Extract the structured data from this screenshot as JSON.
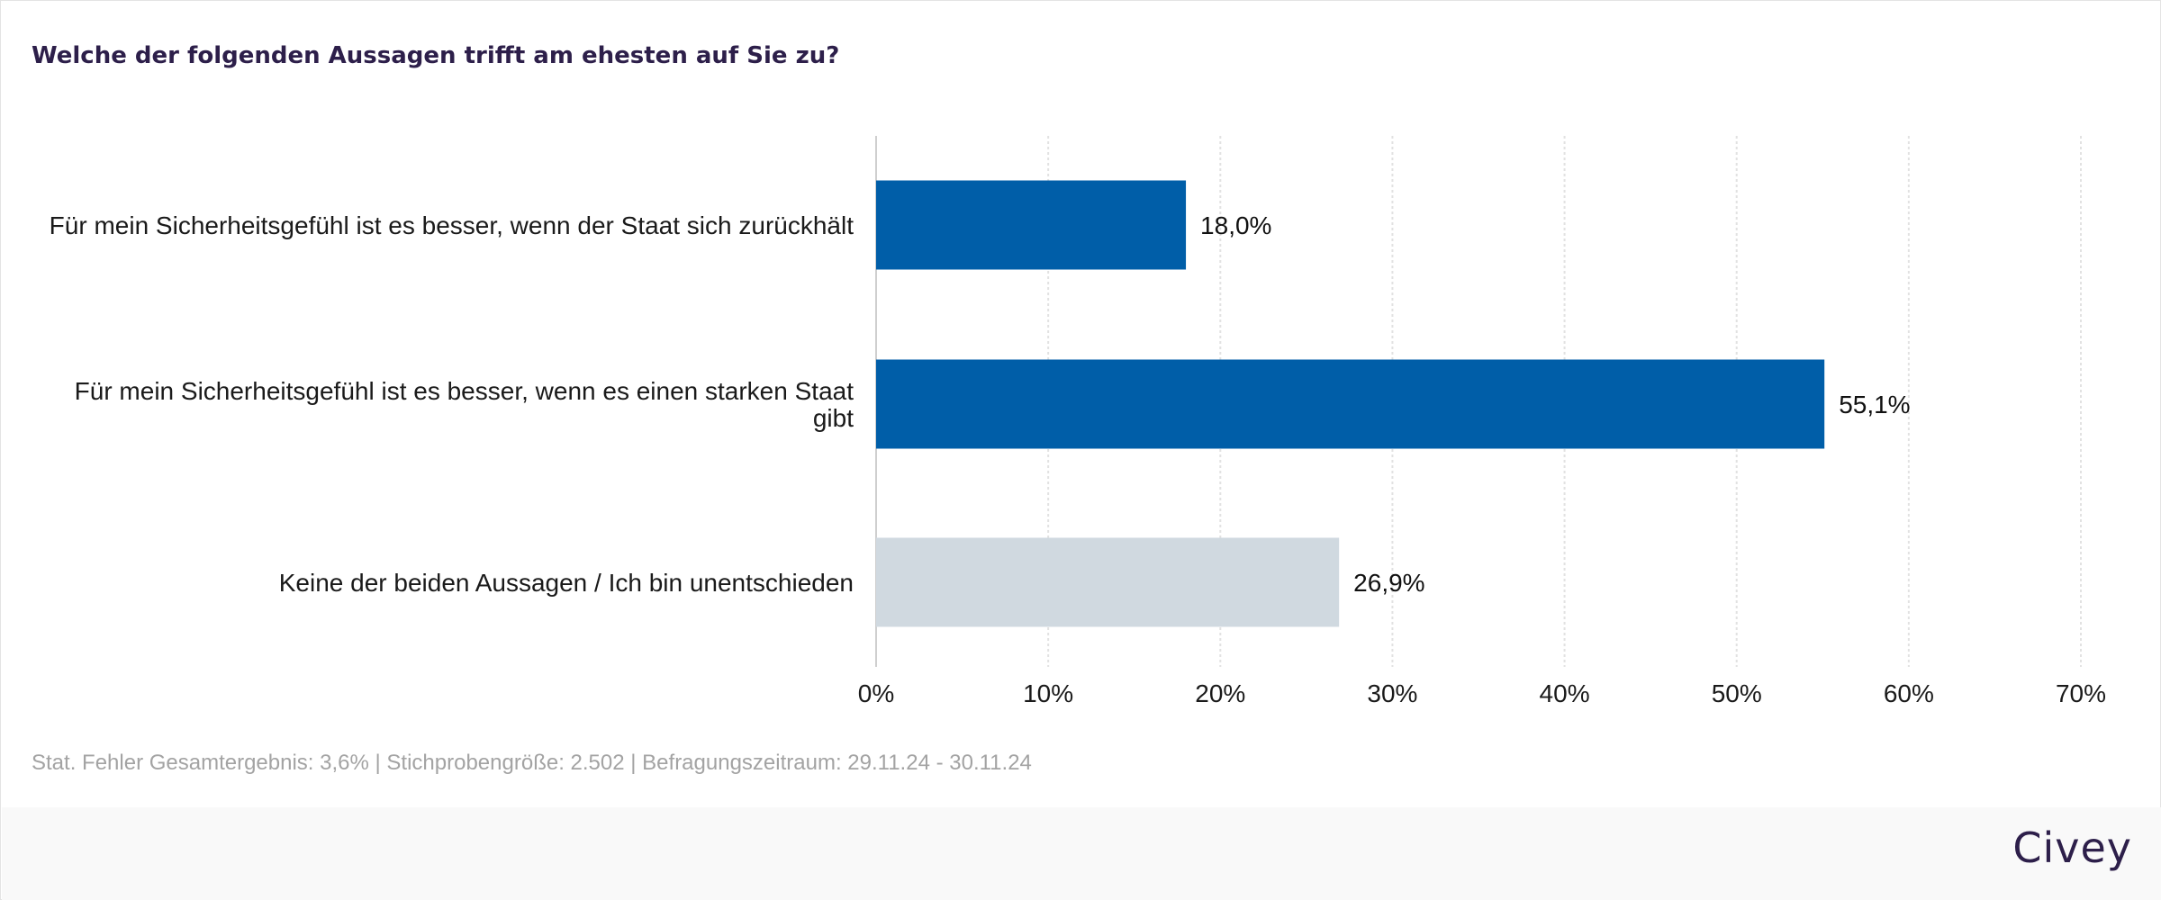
{
  "question": "Welche der folgenden Aussagen trifft am ehesten auf Sie zu?",
  "footnote": "Stat. Fehler Gesamtergebnis: 3,6% | Stichprobengröße: 2.502 | Befragungszeitraum: 29.11.24 - 30.11.24",
  "brand": "Civey",
  "colors": {
    "primary_bar": "#005ea8",
    "neutral_bar": "#d0d9e0",
    "grid": "#e2e2e2",
    "title": "#2d1f4a"
  },
  "chart_data": {
    "type": "bar",
    "orientation": "horizontal",
    "title": "Welche der folgenden Aussagen trifft am ehesten auf Sie zu?",
    "categories": [
      [
        "Für mein Sicherheitsgefühl ist es besser, wenn der Staat sich zurückhält"
      ],
      [
        "Für mein Sicherheitsgefühl ist es besser, wenn es einen starken Staat",
        "gibt"
      ],
      [
        "Keine der beiden Aussagen / Ich bin unentschieden"
      ]
    ],
    "values": [
      18.0,
      55.1,
      26.9
    ],
    "value_labels": [
      "18,0%",
      "55,1%",
      "26,9%"
    ],
    "bar_colors": [
      "#005ea8",
      "#005ea8",
      "#d0d9e0"
    ],
    "xlim": [
      0,
      70
    ],
    "ticks": [
      0,
      10,
      20,
      30,
      40,
      50,
      60,
      70
    ],
    "tick_labels": [
      "0%",
      "10%",
      "20%",
      "30%",
      "40%",
      "50%",
      "60%",
      "70%"
    ],
    "grid": true,
    "legend": "none"
  }
}
